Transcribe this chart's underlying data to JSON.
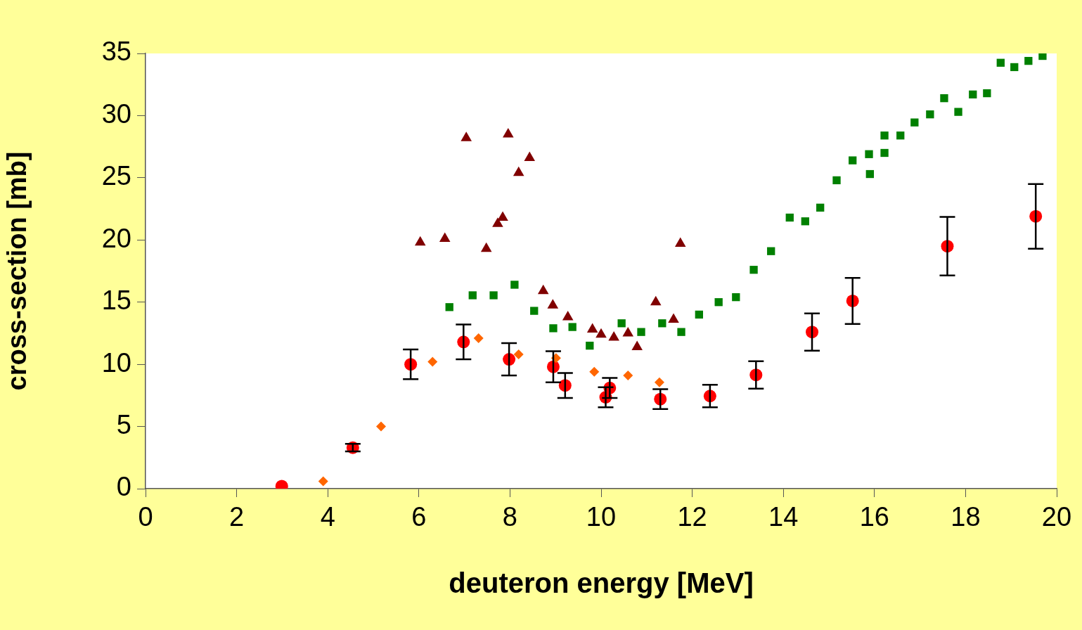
{
  "chart_data": {
    "type": "scatter",
    "xlabel": "deuteron energy [MeV]",
    "ylabel": "cross-section [mb]",
    "xlim": [
      0,
      20
    ],
    "xticks": [
      0,
      2,
      4,
      6,
      8,
      10,
      12,
      14,
      16,
      18,
      20
    ],
    "ylim": [
      0,
      35
    ],
    "yticks": [
      0,
      5,
      10,
      15,
      20,
      25,
      30,
      35
    ],
    "grid": false,
    "legend": false,
    "series": [
      {
        "color": "#800000",
        "marker": "triangle",
        "x": [
          6.03,
          6.57,
          7.04,
          7.48,
          7.73,
          7.84,
          7.96,
          8.19,
          8.43,
          8.73,
          8.94,
          9.27,
          9.81,
          10.0,
          10.28,
          10.59,
          10.79,
          11.2,
          11.59,
          11.74
        ],
        "values": [
          19.8,
          20.1,
          28.2,
          19.3,
          21.3,
          21.8,
          28.5,
          25.4,
          26.6,
          15.9,
          14.75,
          13.8,
          12.8,
          12.4,
          12.15,
          12.5,
          11.4,
          15.0,
          13.6,
          19.7
        ]
      },
      {
        "color": "#008000",
        "marker": "square",
        "x": [
          6.67,
          7.18,
          7.64,
          8.1,
          8.53,
          8.95,
          9.37,
          9.75,
          10.45,
          10.88,
          11.34,
          11.76,
          12.15,
          12.58,
          12.96,
          13.35,
          13.73,
          14.14,
          14.48,
          14.81,
          15.17,
          15.52,
          15.88,
          15.9,
          16.22,
          16.22,
          16.57,
          16.88,
          17.22,
          17.53,
          17.84,
          18.16,
          18.47,
          18.77,
          19.07,
          19.38,
          19.69
        ],
        "values": [
          14.6,
          15.55,
          15.55,
          16.4,
          14.3,
          12.9,
          13.0,
          11.5,
          13.3,
          12.6,
          13.3,
          12.6,
          14.0,
          15.0,
          15.4,
          17.6,
          19.1,
          21.8,
          21.5,
          22.6,
          24.8,
          26.4,
          26.9,
          25.3,
          27.0,
          28.4,
          28.4,
          29.45,
          30.1,
          31.4,
          30.3,
          31.7,
          31.8,
          34.25,
          33.9,
          34.4,
          34.8
        ]
      },
      {
        "color": "#ff6600",
        "marker": "diamond",
        "x": [
          3.9,
          5.17,
          6.3,
          7.31,
          8.19,
          9.01,
          9.85,
          10.59,
          11.28
        ],
        "values": [
          0.6,
          5.0,
          10.2,
          12.1,
          10.8,
          10.5,
          9.4,
          9.1,
          8.55
        ]
      },
      {
        "color": "#ff0000",
        "marker": "circle",
        "x": [
          2.99,
          4.55,
          5.82,
          6.98,
          7.98,
          8.95,
          9.21,
          10.1,
          10.19,
          11.3,
          12.39,
          13.4,
          14.63,
          15.52,
          17.6,
          19.54
        ],
        "values": [
          0.2,
          3.3,
          10.0,
          11.8,
          10.4,
          9.8,
          8.3,
          7.35,
          8.1,
          7.2,
          7.45,
          9.15,
          12.6,
          15.1,
          19.5,
          21.9
        ],
        "errors": [
          null,
          0.3,
          1.2,
          1.4,
          1.3,
          1.25,
          1.0,
          0.8,
          0.8,
          0.8,
          0.9,
          1.1,
          1.5,
          1.85,
          2.35,
          2.6
        ]
      }
    ]
  }
}
